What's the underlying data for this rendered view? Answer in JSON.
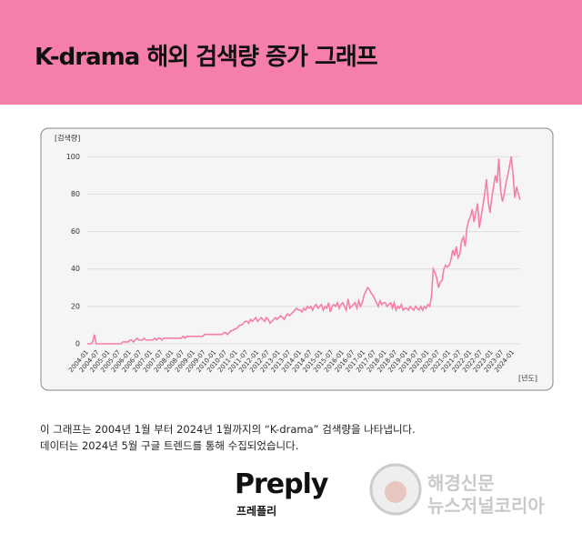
{
  "header": {
    "title": "K-drama 해외 검색량 증가 그래프"
  },
  "chart_data": {
    "type": "line",
    "y_label": "[검색량]",
    "x_label": "[년도]",
    "color": "#f57fa8",
    "ylim": [
      0,
      105
    ],
    "yticks": [
      0,
      20,
      40,
      60,
      80,
      100
    ],
    "grid": true,
    "categories": [
      "2004-01",
      null,
      null,
      null,
      null,
      null,
      "2004-07",
      null,
      null,
      null,
      null,
      null,
      "2005-01",
      null,
      null,
      null,
      null,
      null,
      "2005-07",
      null,
      null,
      null,
      null,
      null,
      "2006-01",
      null,
      null,
      null,
      null,
      null,
      "2006-07",
      null,
      null,
      null,
      null,
      null,
      "2007-01",
      null,
      null,
      null,
      null,
      null,
      "2007-07",
      null,
      null,
      null,
      null,
      null,
      "2008-01",
      null,
      null,
      null,
      null,
      null,
      "2008-07",
      null,
      null,
      null,
      null,
      null,
      "2009-01",
      null,
      null,
      null,
      null,
      null,
      "2009-07",
      null,
      null,
      null,
      null,
      null,
      "2010-01",
      null,
      null,
      null,
      null,
      null,
      "2010-07",
      null,
      null,
      null,
      null,
      null,
      "2011-01",
      null,
      null,
      null,
      null,
      null,
      "2011-07",
      null,
      null,
      null,
      null,
      null,
      "2012-01",
      null,
      null,
      null,
      null,
      null,
      "2012-07",
      null,
      null,
      null,
      null,
      null,
      "2013-01",
      null,
      null,
      null,
      null,
      null,
      "2013-07",
      null,
      null,
      null,
      null,
      null,
      "2014-01",
      null,
      null,
      null,
      null,
      null,
      "2014-07",
      null,
      null,
      null,
      null,
      null,
      "2015-01",
      null,
      null,
      null,
      null,
      null,
      "2015-07",
      null,
      null,
      null,
      null,
      null,
      "2016-01",
      null,
      null,
      null,
      null,
      null,
      "2016-07",
      null,
      null,
      null,
      null,
      null,
      "2017-01",
      null,
      null,
      null,
      null,
      null,
      "2017-07",
      null,
      null,
      null,
      null,
      null,
      "2018-01",
      null,
      null,
      null,
      null,
      null,
      "2018-07",
      null,
      null,
      null,
      null,
      null,
      "2019-01",
      null,
      null,
      null,
      null,
      null,
      "2019-07",
      null,
      null,
      null,
      null,
      null,
      "2020-01",
      null,
      null,
      null,
      null,
      null,
      "2020-07",
      null,
      null,
      null,
      null,
      null,
      "2021-01",
      null,
      null,
      null,
      null,
      null,
      "2021-07",
      null,
      null,
      null,
      null,
      null,
      "2022-01",
      null,
      null,
      null,
      null,
      null,
      "2022-07",
      null,
      null,
      null,
      null,
      null,
      "2023-01",
      null,
      null,
      null,
      null,
      null,
      "2023-07",
      null,
      null,
      null,
      null,
      null,
      "2024-01",
      null,
      null,
      null,
      null
    ],
    "values": [
      0,
      0,
      0,
      1,
      5,
      0,
      0,
      0,
      0,
      0,
      0,
      0,
      0,
      0,
      0,
      0,
      0,
      0,
      0,
      0,
      1,
      1,
      1,
      1,
      2,
      2,
      1,
      2,
      3,
      2,
      2,
      2,
      3,
      2,
      2,
      2,
      2,
      2,
      3,
      2,
      3,
      3,
      2,
      3,
      3,
      3,
      3,
      3,
      3,
      3,
      3,
      3,
      3,
      3,
      4,
      3,
      4,
      4,
      4,
      4,
      4,
      4,
      4,
      4,
      4,
      4,
      5,
      5,
      5,
      5,
      5,
      5,
      5,
      5,
      5,
      5,
      5,
      6,
      6,
      5,
      6,
      7,
      7,
      8,
      8,
      9,
      10,
      10,
      11,
      12,
      12,
      11,
      13,
      12,
      13,
      14,
      12,
      13,
      14,
      13,
      12,
      14,
      13,
      11,
      12,
      13,
      14,
      13,
      14,
      15,
      14,
      13,
      15,
      16,
      15,
      16,
      17,
      18,
      19,
      18,
      18,
      17,
      19,
      18,
      20,
      19,
      20,
      18,
      20,
      21,
      19,
      20,
      21,
      18,
      20,
      19,
      22,
      17,
      20,
      21,
      20,
      22,
      19,
      21,
      22,
      20,
      18,
      24,
      19,
      20,
      21,
      22,
      19,
      23,
      20,
      22,
      26,
      28,
      30,
      29,
      27,
      26,
      24,
      22,
      20,
      23,
      21,
      22,
      22,
      20,
      21,
      22,
      19,
      22,
      18,
      20,
      19,
      21,
      18,
      19,
      19,
      18,
      20,
      19,
      18,
      20,
      19,
      18,
      20,
      18,
      20,
      19,
      21,
      20,
      25,
      40,
      38,
      35,
      30,
      33,
      34,
      40,
      42,
      41,
      42,
      45,
      50,
      47,
      52,
      46,
      48,
      55,
      57,
      52,
      62,
      66,
      68,
      72,
      65,
      70,
      75,
      62,
      68,
      74,
      80,
      88,
      76,
      70,
      78,
      84,
      90,
      86,
      99,
      82,
      76,
      80,
      86,
      90,
      95,
      100,
      90,
      78,
      84,
      80,
      77
    ]
  },
  "caption": [
    "이 그래프는 2004년 1월 부터 2024년 1월까지의 “K-drama” 검색량을 나타냅니다.",
    "데이터는 2024년 5월 구글 트렌드를 통해 수집되었습니다."
  ],
  "brand": {
    "name": "Preply",
    "sub": "프레플리"
  },
  "watermark": [
    "해경신문",
    "뉴스저널코리아"
  ]
}
